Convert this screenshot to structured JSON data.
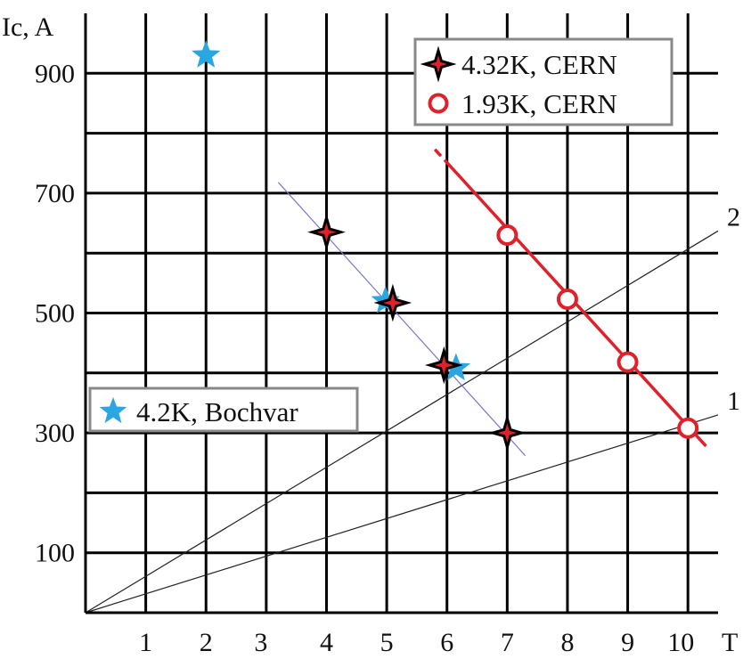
{
  "chart_data": {
    "type": "scatter",
    "xlabel": "T",
    "ylabel": "Ic, A",
    "xlim": [
      0,
      10.5
    ],
    "ylim": [
      0,
      1000
    ],
    "grid": true,
    "x_ticks": [
      1,
      2,
      3,
      4,
      5,
      6,
      7,
      8,
      9,
      10
    ],
    "y_ticks": [
      100,
      300,
      500,
      700,
      900
    ],
    "series": [
      {
        "name": "4.32K, CERN",
        "marker": "four-point-star",
        "color": "#e0202a",
        "points": [
          {
            "x": 4.0,
            "y": 635
          },
          {
            "x": 5.1,
            "y": 517
          },
          {
            "x": 5.95,
            "y": 413
          },
          {
            "x": 7.0,
            "y": 300
          }
        ],
        "fit": {
          "color": "#7777cc",
          "from": {
            "x": 3.2,
            "y": 718
          },
          "to": {
            "x": 7.3,
            "y": 262
          }
        }
      },
      {
        "name": "1.93K, CERN",
        "marker": "circle",
        "color": "#e0202a",
        "points": [
          {
            "x": 7.0,
            "y": 630
          },
          {
            "x": 8.0,
            "y": 523
          },
          {
            "x": 9.0,
            "y": 418
          },
          {
            "x": 10.0,
            "y": 308
          }
        ],
        "fit": {
          "color": "#e0202a",
          "from": {
            "x": 5.8,
            "y": 773
          },
          "to": {
            "x": 10.3,
            "y": 278
          },
          "dashed_until_x": 6.0
        }
      },
      {
        "name": "4.2K, Bochvar",
        "marker": "five-point-star",
        "color": "#2aa6e0",
        "points": [
          {
            "x": 2.0,
            "y": 930
          },
          {
            "x": 4.98,
            "y": 520
          },
          {
            "x": 6.15,
            "y": 408
          }
        ]
      }
    ],
    "reference_lines": [
      {
        "label": "1",
        "from": {
          "x": 0,
          "y": 0
        },
        "to": {
          "x": 10.5,
          "y": 330
        }
      },
      {
        "label": "2",
        "from": {
          "x": 0,
          "y": 0
        },
        "to": {
          "x": 10.5,
          "y": 637
        }
      }
    ],
    "legends": [
      {
        "placement": "top-right",
        "entries": [
          "4.32K, CERN",
          "1.93K, CERN"
        ]
      },
      {
        "placement": "middle-left",
        "entries": [
          "4.2K, Bochvar"
        ]
      }
    ]
  }
}
